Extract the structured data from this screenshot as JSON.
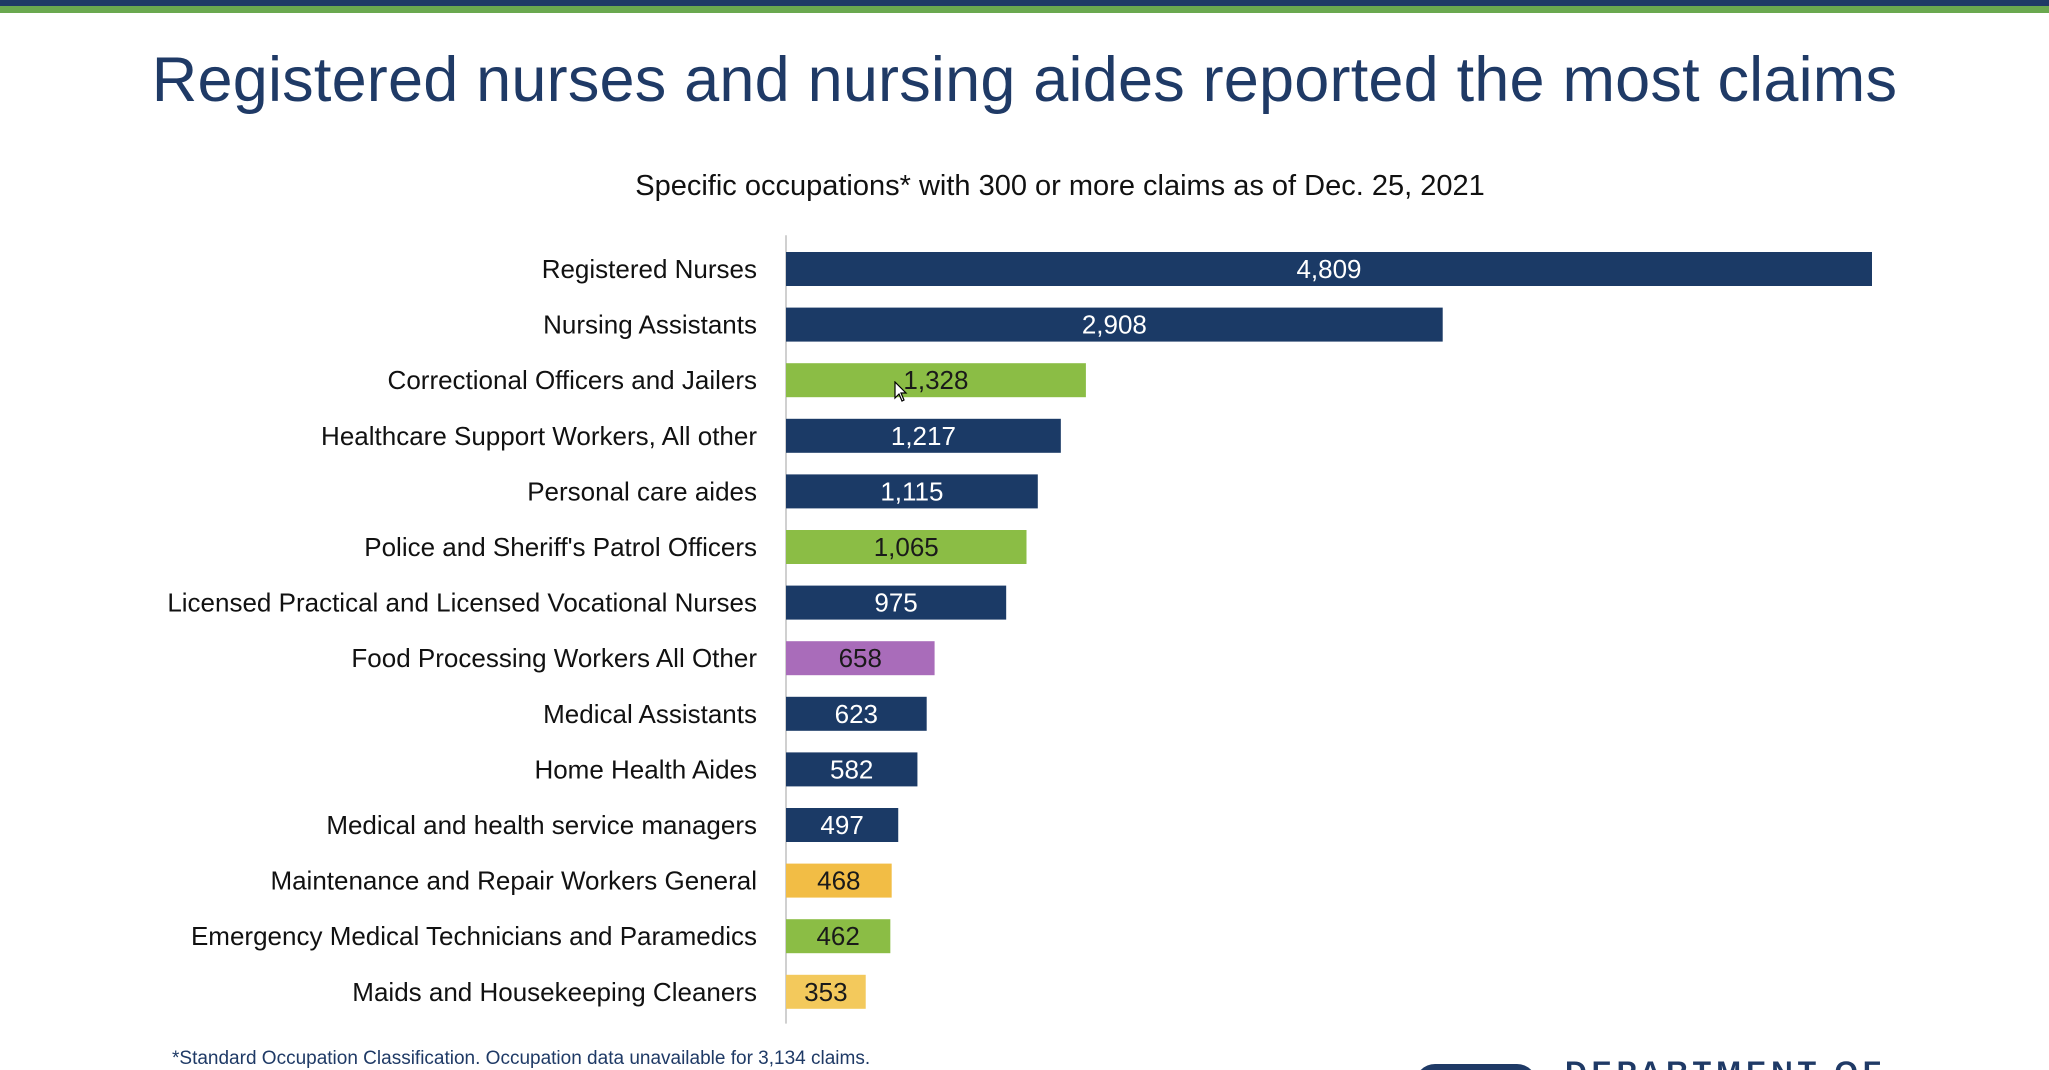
{
  "slide": {
    "title": "Registered nurses and nursing aides reported the most claims",
    "footnote": "*Standard Occupation Classification. Occupation data unavailable for 3,134 claims.",
    "logo_text": "DEPARTMENT OF"
  },
  "colors": {
    "navy": "#1b3a66",
    "green": "#8bbd45",
    "purple": "#a96cba",
    "gold": "#f2bd45",
    "lightgold": "#f3c95c"
  },
  "chart_data": {
    "type": "bar",
    "orientation": "horizontal",
    "title": "Specific occupations* with 300 or more claims as of Dec. 25, 2021",
    "xlabel": "",
    "ylabel": "",
    "xlim": [
      0,
      4809
    ],
    "grid": false,
    "categories": [
      "Registered Nurses",
      "Nursing Assistants",
      "Correctional Officers and Jailers",
      "Healthcare Support Workers, All other",
      "Personal care aides",
      "Police and Sheriff's Patrol Officers",
      "Licensed Practical and Licensed Vocational Nurses",
      "Food Processing Workers All Other",
      "Medical Assistants",
      "Home Health Aides",
      "Medical and health service managers",
      "Maintenance and Repair Workers General",
      "Emergency Medical Technicians and Paramedics",
      "Maids and Housekeeping Cleaners"
    ],
    "values": [
      4809,
      2908,
      1328,
      1217,
      1115,
      1065,
      975,
      658,
      623,
      582,
      497,
      468,
      462,
      353
    ],
    "value_labels": [
      "4,809",
      "2,908",
      "1,328",
      "1,217",
      "1,115",
      "1,065",
      "975",
      "658",
      "623",
      "582",
      "497",
      "468",
      "462",
      "353"
    ],
    "bar_colors": [
      "navy",
      "navy",
      "green",
      "navy",
      "navy",
      "green",
      "navy",
      "purple",
      "navy",
      "navy",
      "navy",
      "gold",
      "green",
      "lightgold"
    ],
    "label_colors": [
      "#ffffff",
      "#ffffff",
      "#1a1a1a",
      "#ffffff",
      "#ffffff",
      "#1a1a1a",
      "#ffffff",
      "#1a1a1a",
      "#ffffff",
      "#ffffff",
      "#ffffff",
      "#1a1a1a",
      "#1a1a1a",
      "#1a1a1a"
    ]
  }
}
